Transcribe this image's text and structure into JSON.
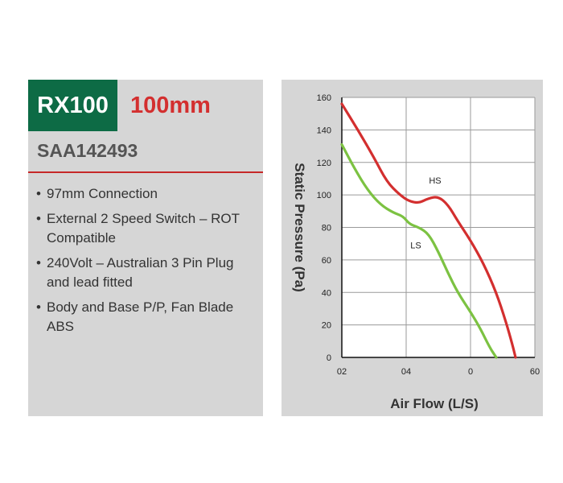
{
  "product": {
    "model": "RX100",
    "size": "100mm",
    "code": "SAA142493",
    "features": [
      "97mm Connection",
      "External 2 Speed Switch – ROT Compatible",
      "240Volt – Australian 3 Pin Plug and lead fitted",
      "Body and Base P/P, Fan Blade ABS"
    ]
  },
  "colors": {
    "model_bg": "#0d6b45",
    "size_text": "#d32f2f",
    "divider": "#c62828",
    "hs_line": "#d32f2f",
    "ls_line": "#7cc242"
  },
  "chart_data": {
    "type": "line",
    "title": "",
    "xlabel": "Air Flow (L/S)",
    "ylabel": "Static Pressure (Pa)",
    "x_tick_labels": [
      "02",
      "04",
      "0",
      "60"
    ],
    "y_ticks": [
      0,
      20,
      40,
      60,
      80,
      100,
      120,
      140,
      160
    ],
    "xlim": [
      0,
      60
    ],
    "ylim": [
      0,
      160
    ],
    "grid": true,
    "series": [
      {
        "name": "HS",
        "color": "#d32f2f",
        "points": [
          [
            0,
            156
          ],
          [
            5,
            140
          ],
          [
            10,
            123
          ],
          [
            14,
            108
          ],
          [
            18,
            100
          ],
          [
            21,
            96
          ],
          [
            24,
            95
          ],
          [
            27,
            98
          ],
          [
            30,
            99
          ],
          [
            33,
            94
          ],
          [
            36,
            84
          ],
          [
            40,
            72
          ],
          [
            44,
            58
          ],
          [
            48,
            40
          ],
          [
            51,
            22
          ],
          [
            53,
            8
          ],
          [
            54,
            0
          ]
        ]
      },
      {
        "name": "LS",
        "color": "#7cc242",
        "points": [
          [
            0,
            131
          ],
          [
            4,
            116
          ],
          [
            8,
            103
          ],
          [
            12,
            94
          ],
          [
            16,
            89
          ],
          [
            19,
            87
          ],
          [
            21,
            82
          ],
          [
            24,
            80
          ],
          [
            27,
            76
          ],
          [
            30,
            65
          ],
          [
            33,
            52
          ],
          [
            36,
            40
          ],
          [
            40,
            28
          ],
          [
            43,
            18
          ],
          [
            46,
            6
          ],
          [
            48,
            0
          ]
        ]
      }
    ]
  }
}
